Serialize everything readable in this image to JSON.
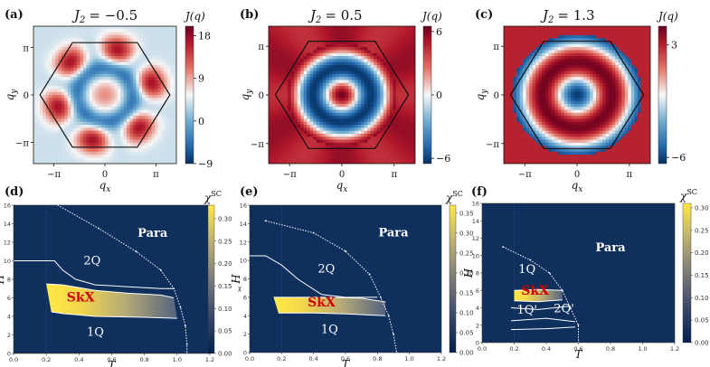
{
  "chart_data": [
    {
      "panel": "(a)",
      "type": "heatmap",
      "title": "J_2 = -0.5",
      "title_prefix": "J",
      "title_sub": "2",
      "title_value": "= −0.5",
      "colorbar_label": "J(q)",
      "colorbar_ticks": [
        "18",
        "9",
        "0",
        "−9"
      ],
      "xlabel": "q_x",
      "ylabel": "q_y",
      "xticks": [
        "−π",
        "0",
        "π"
      ],
      "yticks": [
        "π",
        "0",
        "−π"
      ],
      "J2": -0.5,
      "pattern": "six maxima near hexagon edge midpoints, central bump",
      "vmin": -9,
      "vmax": 20
    },
    {
      "panel": "(b)",
      "type": "heatmap",
      "title": "J_2 = 0.5",
      "title_prefix": "J",
      "title_sub": "2",
      "title_value": "= 0.5",
      "colorbar_label": "J(q)",
      "colorbar_ticks": [
        "6",
        "0",
        "−6"
      ],
      "xlabel": "q_x",
      "ylabel": "q_y",
      "xticks": [
        "−π",
        "0",
        "π"
      ],
      "yticks": [
        "π",
        "0",
        "−π"
      ],
      "J2": 0.5,
      "pattern": "concentric rings, maximum at center and on ring",
      "vmin": -6.5,
      "vmax": 6.5
    },
    {
      "panel": "(c)",
      "type": "heatmap",
      "title": "J_2 = 1.3",
      "title_prefix": "J",
      "title_sub": "2",
      "title_value": "= 1.3",
      "colorbar_label": "J(q)",
      "colorbar_ticks": [
        "3",
        "−6"
      ],
      "xlabel": "q_x",
      "ylabel": "q_y",
      "xticks": [
        "−π",
        "0",
        "π"
      ],
      "yticks": [
        "π",
        "0",
        "−π"
      ],
      "J2": 1.3,
      "pattern": "concentric rings, minimum at center",
      "vmin": -6.5,
      "vmax": 4.5
    },
    {
      "panel": "(d)",
      "type": "heatmap",
      "xlabel": "T",
      "ylabel": "H",
      "xlim": [
        0,
        1.2
      ],
      "ylim": [
        0,
        16
      ],
      "xticks": [
        "0.0",
        "0.2",
        "0.4",
        "0.6",
        "0.8",
        "1.0",
        "1.2"
      ],
      "yticks": [
        "0",
        "2",
        "4",
        "6",
        "8",
        "10",
        "12",
        "14",
        "16"
      ],
      "colorbar_label": "χSC",
      "colorbar_label_main": "χ",
      "colorbar_label_sup": "SC",
      "colorbar_axis_label": "χ",
      "colorbar_ticks": [
        "0.30",
        "0.25",
        "0.20",
        "0.15",
        "0.10",
        "0.05",
        "0.00"
      ],
      "colorbar_range": [
        0,
        0.33
      ],
      "phase_labels": [
        {
          "text": "Para",
          "T": 0.85,
          "H": 12.6
        },
        {
          "text": "2Q",
          "T": 0.48,
          "H": 9.6
        },
        {
          "text": "SkX",
          "T": 0.41,
          "H": 5.6
        },
        {
          "text": "1Q",
          "T": 0.5,
          "H": 1.9
        }
      ],
      "boundaries": [
        {
          "name": "para",
          "points": [
            [
              0.27,
              16
            ],
            [
              0.52,
              13.5
            ],
            [
              0.75,
              11
            ],
            [
              0.9,
              9
            ],
            [
              0.98,
              7
            ],
            [
              1.02,
              5
            ],
            [
              1.05,
              3
            ],
            [
              1.06,
              1
            ],
            [
              1.06,
              0
            ]
          ]
        },
        {
          "name": "upper",
          "points": [
            [
              0,
              10
            ],
            [
              0.25,
              10
            ],
            [
              0.3,
              9
            ],
            [
              0.38,
              8
            ],
            [
              0.5,
              7.4
            ],
            [
              0.7,
              7.2
            ],
            [
              0.9,
              7
            ],
            [
              0.98,
              7
            ]
          ]
        },
        {
          "name": "skx_top",
          "points": [
            [
              0.2,
              7.5
            ],
            [
              0.3,
              7.4
            ],
            [
              0.5,
              6.8
            ],
            [
              0.7,
              6.5
            ],
            [
              0.9,
              6.3
            ],
            [
              0.98,
              6
            ]
          ]
        },
        {
          "name": "skx_bottom",
          "points": [
            [
              0.23,
              4.5
            ],
            [
              0.3,
              4.3
            ],
            [
              0.5,
              4
            ],
            [
              0.8,
              3.9
            ],
            [
              1,
              3.8
            ]
          ]
        }
      ],
      "skx_region": {
        "T_range": [
          0.2,
          1.0
        ],
        "H_range": [
          3.8,
          7.5
        ],
        "chi_max": 0.32
      }
    },
    {
      "panel": "(e)",
      "type": "heatmap",
      "xlabel": "T",
      "ylabel": "H",
      "xlim": [
        0,
        1.2
      ],
      "ylim": [
        0,
        16
      ],
      "xticks": [
        "0.0",
        "0.2",
        "0.4",
        "0.6",
        "0.8",
        "1.0",
        "1.2"
      ],
      "yticks": [
        "0",
        "2",
        "4",
        "6",
        "8",
        "10",
        "12",
        "14",
        "16"
      ],
      "colorbar_label": "χSC",
      "colorbar_label_main": "χ",
      "colorbar_label_sup": "SC",
      "colorbar_ticks": [
        "0.35",
        "0.30",
        "0.25",
        "0.20",
        "0.15",
        "0.10",
        "0.05",
        "0.00"
      ],
      "colorbar_range": [
        0,
        0.37
      ],
      "phase_labels": [
        {
          "text": "Para",
          "T": 0.9,
          "H": 12.6
        },
        {
          "text": "2Q",
          "T": 0.48,
          "H": 8.7
        },
        {
          "text": "SkX",
          "T": 0.45,
          "H": 5
        },
        {
          "text": "1Q",
          "T": 0.5,
          "H": 2.1
        }
      ],
      "boundaries": [
        {
          "name": "para",
          "points": [
            [
              0.1,
              14.3
            ],
            [
              0.4,
              13
            ],
            [
              0.6,
              11
            ],
            [
              0.75,
              8.5
            ],
            [
              0.82,
              6
            ],
            [
              0.87,
              4
            ],
            [
              0.9,
              2
            ],
            [
              0.92,
              0
            ]
          ]
        },
        {
          "name": "upper",
          "points": [
            [
              0,
              10.5
            ],
            [
              0.1,
              10.5
            ],
            [
              0.2,
              9.5
            ],
            [
              0.3,
              8
            ],
            [
              0.45,
              6.3
            ],
            [
              0.6,
              6
            ],
            [
              0.8,
              6
            ]
          ]
        },
        {
          "name": "skx_top",
          "points": [
            [
              0.15,
              6
            ],
            [
              0.3,
              6
            ],
            [
              0.5,
              6
            ],
            [
              0.7,
              5.9
            ],
            [
              0.85,
              5.5
            ]
          ]
        },
        {
          "name": "skx_bottom",
          "points": [
            [
              0.18,
              4.3
            ],
            [
              0.4,
              4.3
            ],
            [
              0.6,
              4.2
            ],
            [
              0.85,
              4
            ]
          ]
        }
      ],
      "skx_region": {
        "T_range": [
          0.15,
          0.9
        ],
        "H_range": [
          4,
          6
        ],
        "chi_max": 0.36
      }
    },
    {
      "panel": "(f)",
      "type": "heatmap",
      "xlabel": "T",
      "ylabel": "H",
      "xlim": [
        0,
        1.2
      ],
      "ylim": [
        0,
        16
      ],
      "xticks": [
        "0.0",
        "0.2",
        "0.4",
        "0.6",
        "0.8",
        "1.0",
        "1.2"
      ],
      "yticks": [
        "0",
        "2",
        "4",
        "6",
        "8",
        "10",
        "12",
        "14",
        "16"
      ],
      "colorbar_label": "χSC",
      "colorbar_label_main": "χ",
      "colorbar_label_sup": "SC",
      "colorbar_axis_label": "χ",
      "colorbar_ticks": [
        "0.30",
        "0.25",
        "0.20",
        "0.15",
        "0.10",
        "0.05",
        "0.00"
      ],
      "colorbar_range": [
        0,
        0.31
      ],
      "phase_labels": [
        {
          "text": "Para",
          "T": 0.8,
          "H": 10.5
        },
        {
          "text": "1Q",
          "T": 0.28,
          "H": 8
        },
        {
          "text": "SkX",
          "T": 0.33,
          "H": 5.5
        },
        {
          "text": "1Q'",
          "T": 0.28,
          "H": 3.3
        },
        {
          "text": "2Q'",
          "T": 0.51,
          "H": 3.5
        }
      ],
      "boundaries": [
        {
          "name": "para",
          "points": [
            [
              0.13,
              11
            ],
            [
              0.3,
              9.5
            ],
            [
              0.42,
              8
            ],
            [
              0.5,
              6
            ],
            [
              0.55,
              4
            ],
            [
              0.6,
              2
            ],
            [
              0.6,
              0
            ]
          ]
        },
        {
          "name": "skx_top",
          "points": [
            [
              0.2,
              6
            ],
            [
              0.35,
              6.1
            ],
            [
              0.5,
              6
            ]
          ]
        },
        {
          "name": "skx_bottom",
          "points": [
            [
              0.2,
              4.8
            ],
            [
              0.35,
              4.7
            ],
            [
              0.5,
              4.9
            ]
          ]
        },
        {
          "name": "lower1",
          "points": [
            [
              0.18,
              4
            ],
            [
              0.35,
              3.8
            ],
            [
              0.55,
              4.2
            ]
          ]
        },
        {
          "name": "lower2",
          "points": [
            [
              0.18,
              2.5
            ],
            [
              0.4,
              2.8
            ],
            [
              0.58,
              2.4
            ]
          ]
        },
        {
          "name": "lower3",
          "points": [
            [
              0.18,
              1.5
            ],
            [
              0.4,
              1.6
            ],
            [
              0.58,
              1.8
            ]
          ]
        }
      ],
      "skx_region": {
        "T_range": [
          0.22,
          0.48
        ],
        "H_range": [
          4.8,
          6.1
        ],
        "chi_max": 0.31
      }
    }
  ]
}
